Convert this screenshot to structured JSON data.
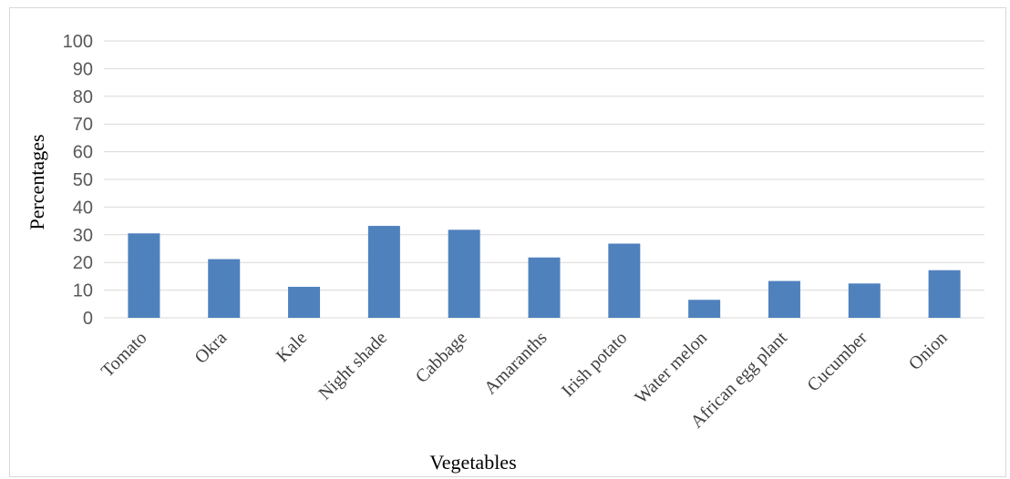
{
  "chart_data": {
    "type": "bar",
    "categories": [
      "Tomato",
      "Okra",
      "Kale",
      "Night shade",
      "Cabbage",
      "Amaranths",
      "Irish potato",
      "Water melon",
      "African egg plant",
      "Cucumber",
      "Onion"
    ],
    "series": [
      {
        "values": [
          30.5,
          21.2,
          11.2,
          33.2,
          31.8,
          21.8,
          26.8,
          6.5,
          13.3,
          12.4,
          17.2
        ]
      }
    ],
    "xlabel": "Vegetables",
    "ylabel": "Percentages",
    "ylim": [
      0,
      100
    ],
    "yticks": [
      "0",
      "10",
      "20",
      "30",
      "40",
      "50",
      "60",
      "70",
      "80",
      "90",
      "100"
    ],
    "grid": true,
    "bar_color": "#4f81bd",
    "grid_color": "#d9d9d9"
  }
}
